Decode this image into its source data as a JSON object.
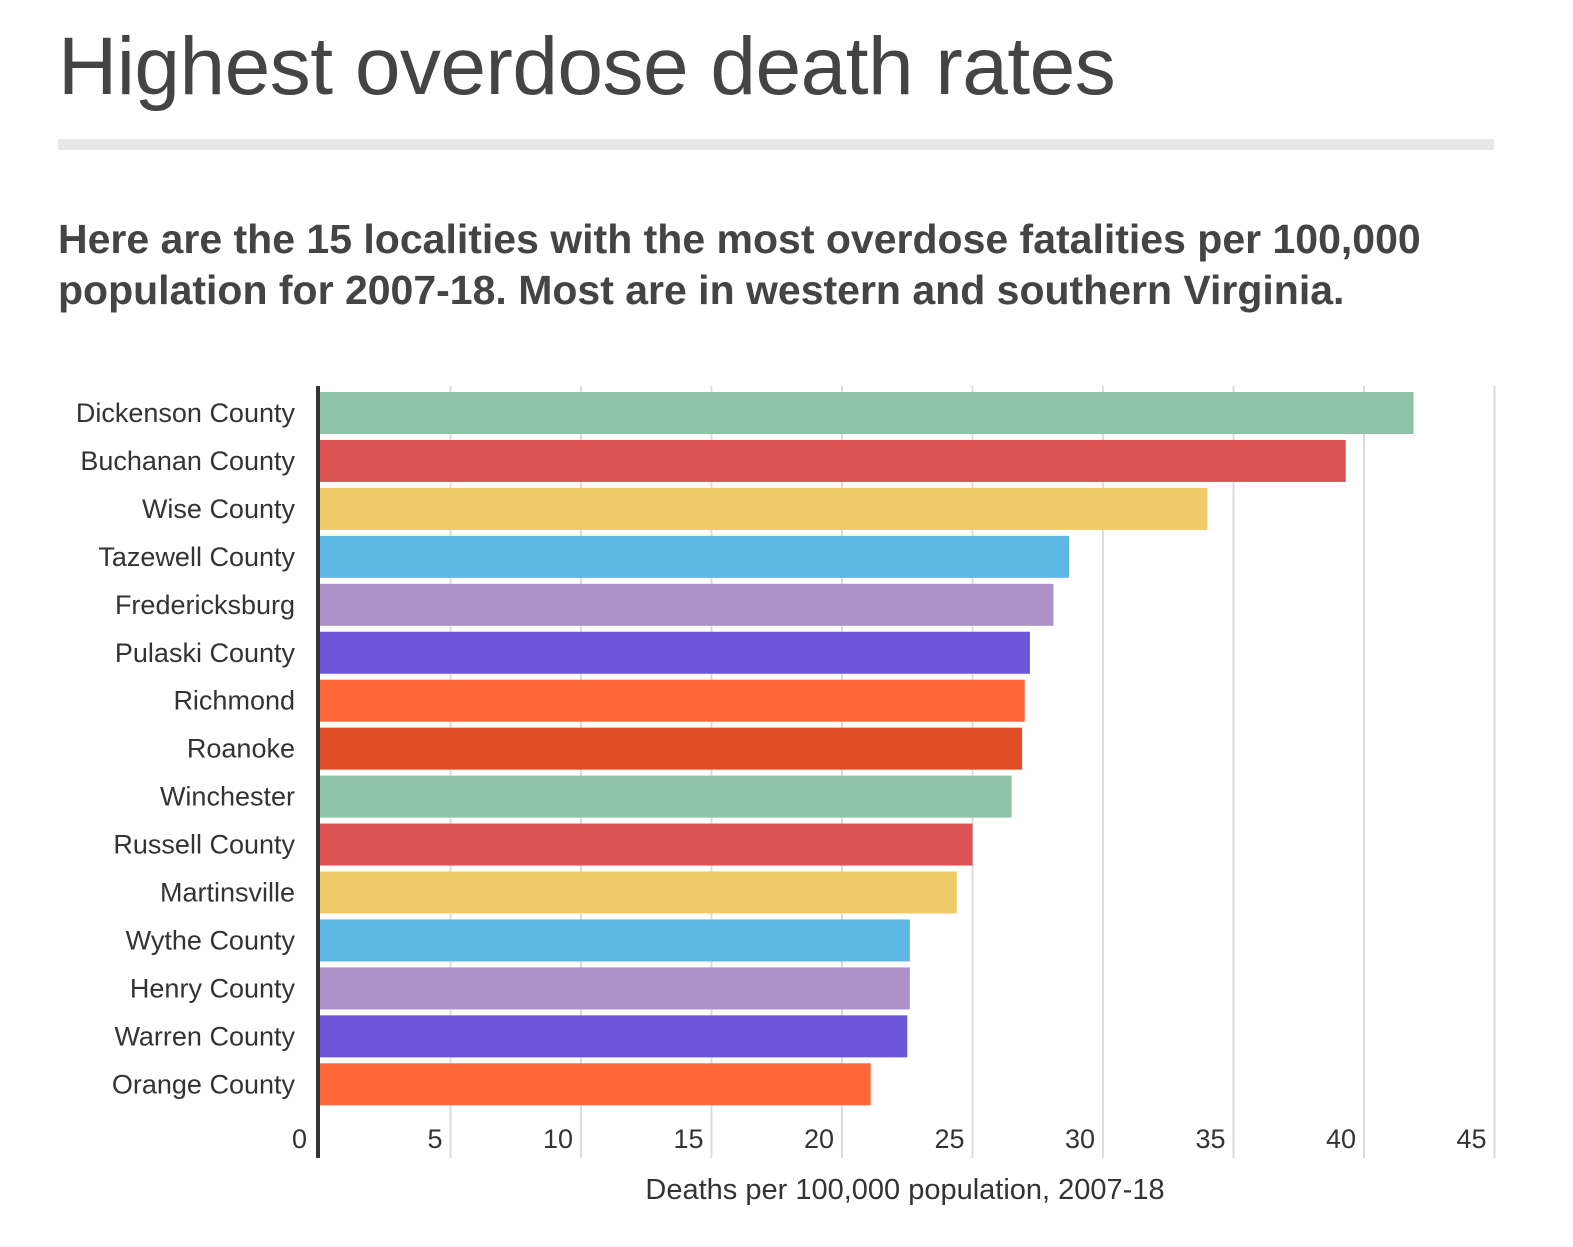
{
  "header": {
    "title": "Highest overdose death rates",
    "subtitle": "Here are the 15 localities with the most overdose fatalities per 100,000 population for 2007-18. Most are in western and southern Virginia."
  },
  "chart_data": {
    "type": "bar",
    "orientation": "horizontal",
    "categories": [
      "Dickenson County",
      "Buchanan County",
      "Wise County",
      "Tazewell County",
      "Fredericksburg",
      "Pulaski County",
      "Richmond",
      "Roanoke",
      "Winchester",
      "Russell County",
      "Martinsville",
      "Wythe County",
      "Henry County",
      "Warren County",
      "Orange County"
    ],
    "values": [
      41.9,
      39.3,
      34.0,
      28.7,
      28.1,
      27.2,
      27.0,
      26.9,
      26.5,
      25.0,
      24.4,
      22.6,
      22.6,
      22.5,
      21.1
    ],
    "colors": [
      "#8ec3a7",
      "#dc5356",
      "#f0cb69",
      "#5fb7e5",
      "#ab91c5",
      "#6d55d9",
      "#fd6739",
      "#e14d26",
      "#8ec3a7",
      "#dc5356",
      "#f0cb69",
      "#5fb7e5",
      "#ab91c5",
      "#6d55d9",
      "#fd6739"
    ],
    "xlabel": "Deaths per 100,000 population, 2007-18",
    "ylabel": "",
    "xlim": [
      0,
      45
    ],
    "ticks": [
      0,
      5,
      10,
      15,
      20,
      25,
      30,
      35,
      40,
      45
    ],
    "tick_labels": [
      "0",
      "5",
      "10",
      "15",
      "20",
      "25",
      "30",
      "35",
      "40",
      "45"
    ],
    "grid": true,
    "legend": "none"
  }
}
